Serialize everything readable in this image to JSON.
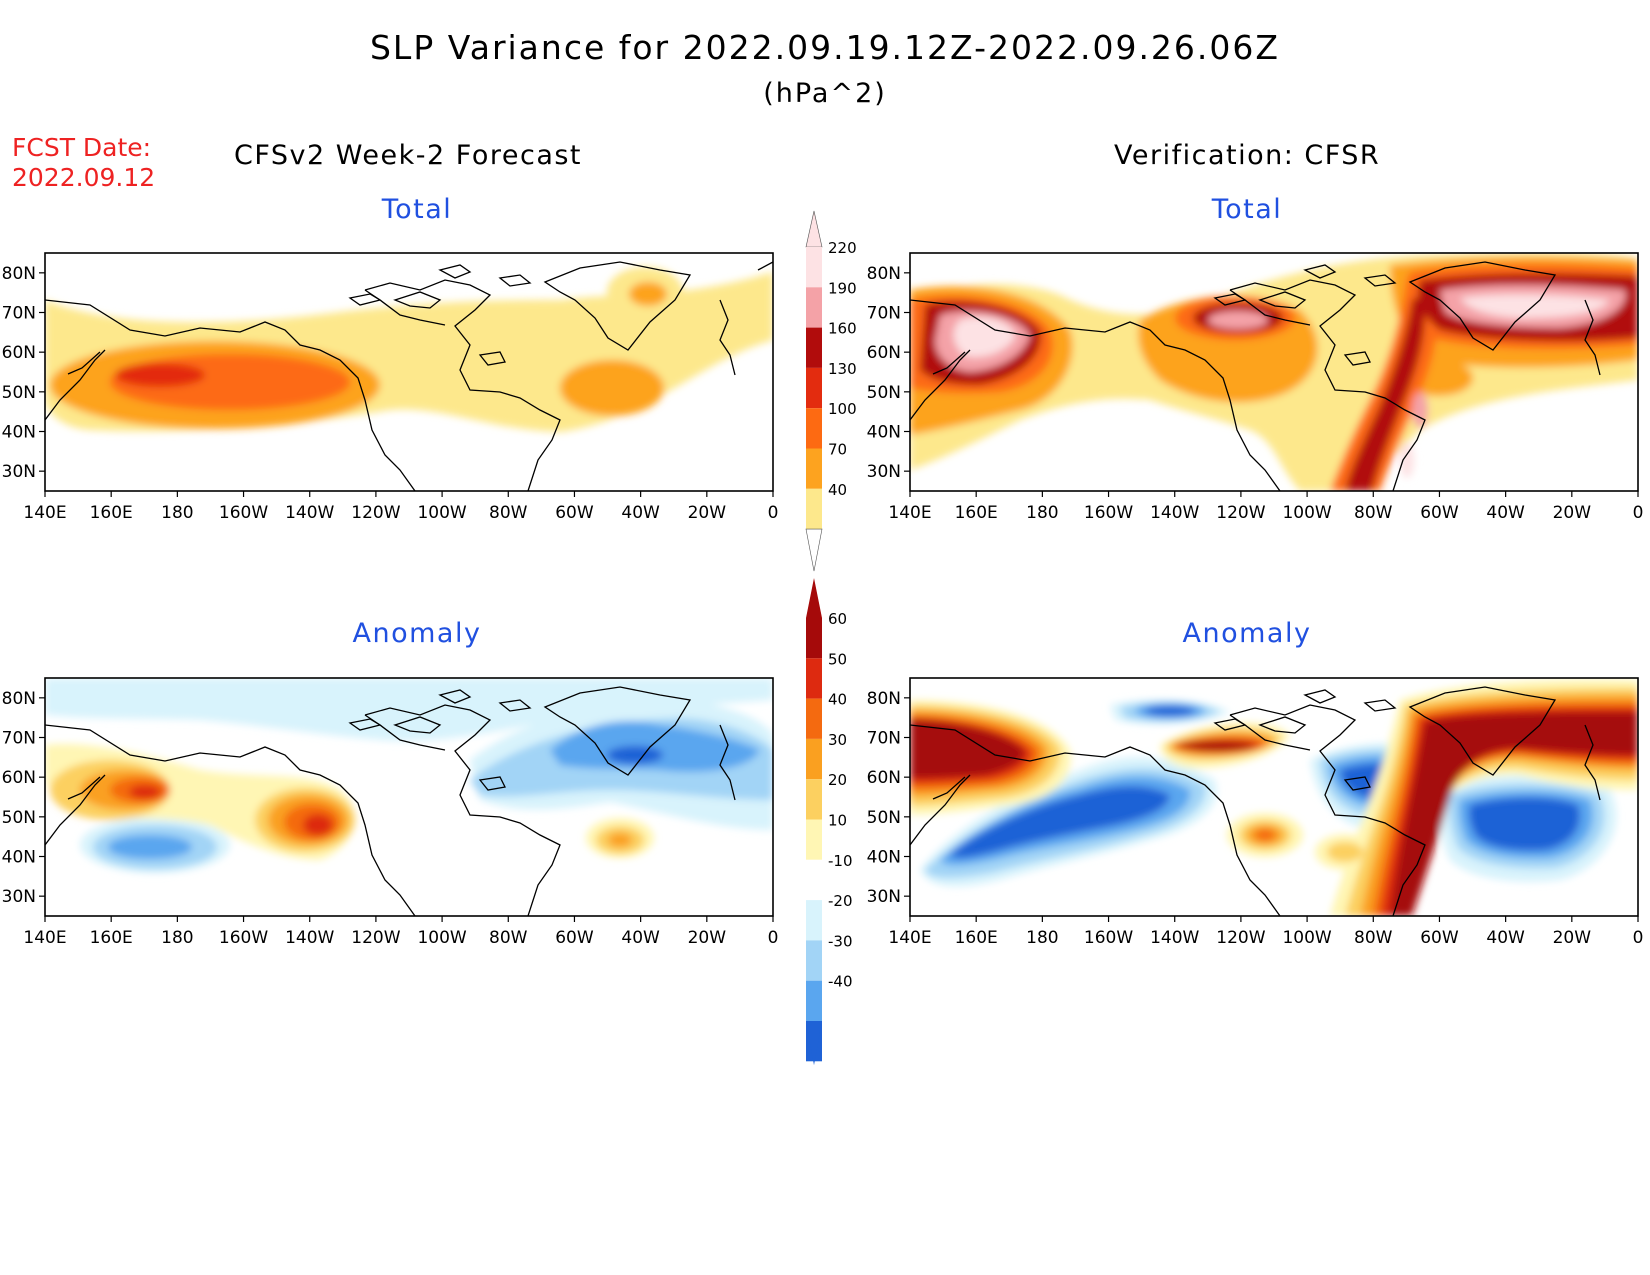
{
  "header": {
    "title": "SLP Variance for 2022.09.19.12Z-2022.09.26.06Z",
    "units": "(hPa^2)",
    "fcst_label": "FCST Date:",
    "fcst_date": "2022.09.12"
  },
  "columns": {
    "left": "CFSv2 Week-2 Forecast",
    "right": "Verification: CFSR"
  },
  "panels": {
    "forecast_total": "Total",
    "verification_total": "Total",
    "forecast_anomaly": "Anomaly",
    "verification_anomaly": "Anomaly"
  },
  "axes": {
    "lon_labels": [
      "140E",
      "160E",
      "180",
      "160W",
      "140W",
      "120W",
      "100W",
      "80W",
      "60W",
      "40W",
      "20W",
      "0"
    ],
    "lat_labels": [
      "80N",
      "70N",
      "60N",
      "50N",
      "40N",
      "30N"
    ],
    "lon_range": [
      140,
      360
    ],
    "lat_range": [
      25,
      85
    ]
  },
  "colorbars": {
    "total": {
      "levels": [
        "40",
        "70",
        "100",
        "130",
        "160",
        "190",
        "220"
      ],
      "colors": [
        "#fde88c",
        "#fda31f",
        "#fd6a12",
        "#e32c0f",
        "#b10c0c",
        "#f4a2a7",
        "#fde2e4"
      ]
    },
    "anomaly": {
      "levels": [
        "60",
        "50",
        "40",
        "30",
        "20",
        "10",
        "-10",
        "-20",
        "-30",
        "-40"
      ],
      "colors": [
        "#a50a0a",
        "#dd2a10",
        "#f46a10",
        "#faa020",
        "#fcd060",
        "#fff6b4",
        "#ffffff",
        "#d8f3fc",
        "#a2d4f6",
        "#5aa6ef",
        "#1f62d6"
      ]
    }
  }
}
